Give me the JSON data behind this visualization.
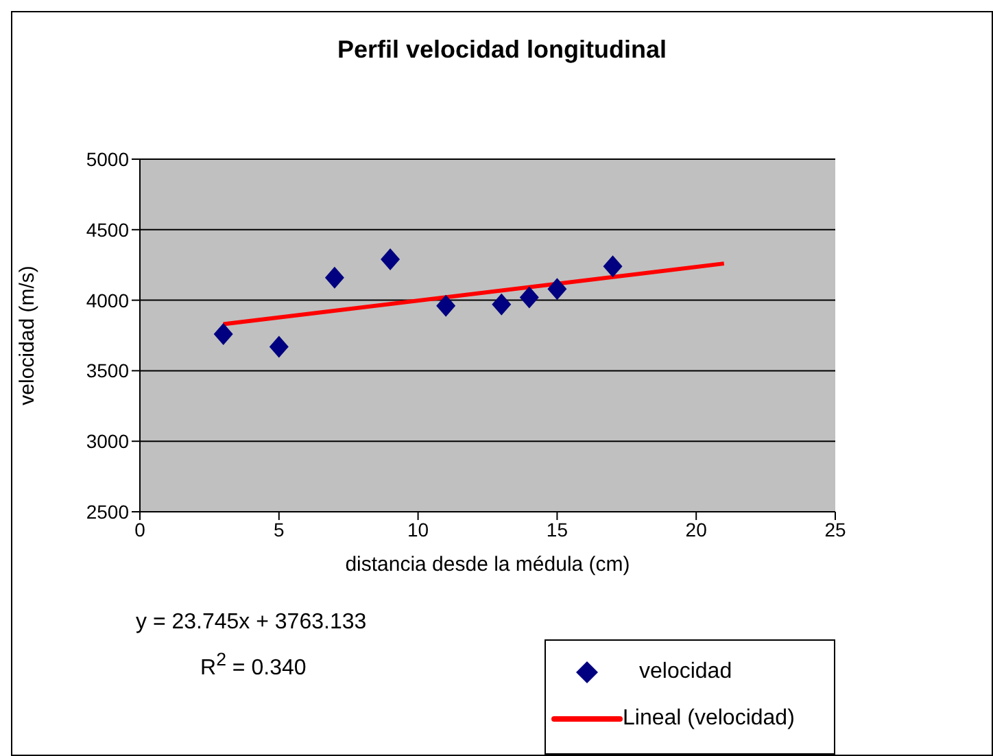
{
  "chart_data": {
    "type": "scatter",
    "title": "Perfil velocidad longitudinal",
    "xlabel": "distancia desde la médula (cm)",
    "ylabel": "velocidad (m/s)",
    "xlim": [
      0,
      25
    ],
    "xticks": [
      0,
      5,
      10,
      15,
      20,
      25
    ],
    "ylim": [
      2500,
      5000
    ],
    "yticks": [
      2500,
      3000,
      3500,
      4000,
      4500,
      5000
    ],
    "grid": "y",
    "legend": "bottom right",
    "annotations": [
      "y = 23.745x + 3763.133",
      "R$^{2}$ = 0.340"
    ],
    "series": [
      {
        "name": "velocidad",
        "color": "#000080",
        "marker": "diamond",
        "x": [
          3,
          5,
          7,
          9,
          11,
          13,
          14,
          15,
          17
        ],
        "values": [
          3760,
          3670,
          4160,
          4290,
          3960,
          3970,
          4020,
          4080,
          4240
        ]
      },
      {
        "type": "line",
        "name": "Lineal (velocidad)",
        "color": "#ff0000",
        "marker": "none",
        "x": [
          3,
          21
        ],
        "values": [
          3830,
          4260
        ]
      }
    ]
  }
}
